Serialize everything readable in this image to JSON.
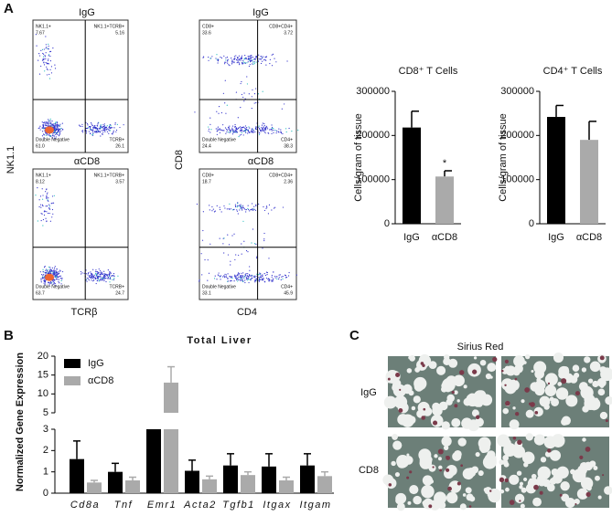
{
  "panel_labels": [
    "A",
    "B",
    "C"
  ],
  "flow": {
    "row_titles": [
      "IgG",
      "αCD8"
    ],
    "left_axes": {
      "y": "NK1.1",
      "x": "TCRβ"
    },
    "right_axes": {
      "y": "CD8",
      "x": "CD4"
    },
    "plots": [
      {
        "quadrants": [
          [
            "NK1.1+",
            "7.67"
          ],
          [
            "NK1.1+TCRB+",
            "5.16"
          ],
          [
            "Double Negative",
            "61.0"
          ],
          [
            "TCRB+",
            "26.1"
          ]
        ]
      },
      {
        "quadrants": [
          [
            "CD8+",
            "33.6"
          ],
          [
            "CD8+CD4+",
            "3.72"
          ],
          [
            "Double Negative",
            "24.4"
          ],
          [
            "CD4+",
            "38.3"
          ]
        ]
      },
      {
        "quadrants": [
          [
            "NK1.1+",
            "8.12"
          ],
          [
            "NK1.1+TCRB+",
            "3.57"
          ],
          [
            "Double Negative",
            "63.7"
          ],
          [
            "TCRB+",
            "24.7"
          ]
        ]
      },
      {
        "quadrants": [
          [
            "CD8+",
            "18.7"
          ],
          [
            "CD8+CD4+",
            "2.36"
          ],
          [
            "Double Negative",
            "33.1"
          ],
          [
            "CD4+",
            "45.9"
          ]
        ]
      }
    ]
  },
  "histology": {
    "title": "Sirius Red",
    "rows": [
      "IgG",
      "CD8"
    ]
  },
  "chart_data": [
    {
      "type": "bar",
      "title": "CD8⁺ T Cells",
      "ylabel": "Cells/gram of tissue",
      "categories": [
        "IgG",
        "αCD8"
      ],
      "values": [
        218000,
        107000
      ],
      "errors": [
        37000,
        13000
      ],
      "colors": [
        "#000000",
        "#aaaaaa"
      ],
      "annotation": "*",
      "ylim": [
        0,
        300000
      ],
      "yticks": [
        0,
        100000,
        200000,
        300000
      ]
    },
    {
      "type": "bar",
      "title": "CD4⁺ T Cells",
      "ylabel": "Cells/gram of tissue",
      "categories": [
        "IgG",
        "αCD8"
      ],
      "values": [
        242000,
        190000
      ],
      "errors": [
        26000,
        42000
      ],
      "colors": [
        "#000000",
        "#aaaaaa"
      ],
      "ylim": [
        0,
        300000
      ],
      "yticks": [
        0,
        100000,
        200000,
        300000
      ]
    },
    {
      "type": "broken-bar",
      "title": "Total Liver",
      "ylabel": "Normalized Gene Expression",
      "categories": [
        "Cd8a",
        "Tnf",
        "Emr1",
        "Acta2",
        "Tgfb1",
        "Itgax",
        "Itgam"
      ],
      "series": [
        {
          "name": "IgG",
          "color": "#000000",
          "values": [
            1.6,
            1.0,
            4,
            1.05,
            1.3,
            1.25,
            1.3
          ],
          "errors": [
            0.85,
            0.4,
            0,
            0.5,
            0.55,
            0.6,
            0.55
          ]
        },
        {
          "name": "αCD8",
          "color": "#aaaaaa",
          "values": [
            0.5,
            0.6,
            13,
            0.65,
            0.85,
            0.6,
            0.8
          ],
          "errors": [
            0.1,
            0.15,
            4.2,
            0.15,
            0.15,
            0.15,
            0.2
          ]
        }
      ],
      "ylim": [
        0,
        20
      ],
      "axis_break": [
        3,
        5
      ],
      "yticks": [
        0,
        1,
        2,
        3,
        5,
        10,
        15,
        20
      ]
    }
  ]
}
